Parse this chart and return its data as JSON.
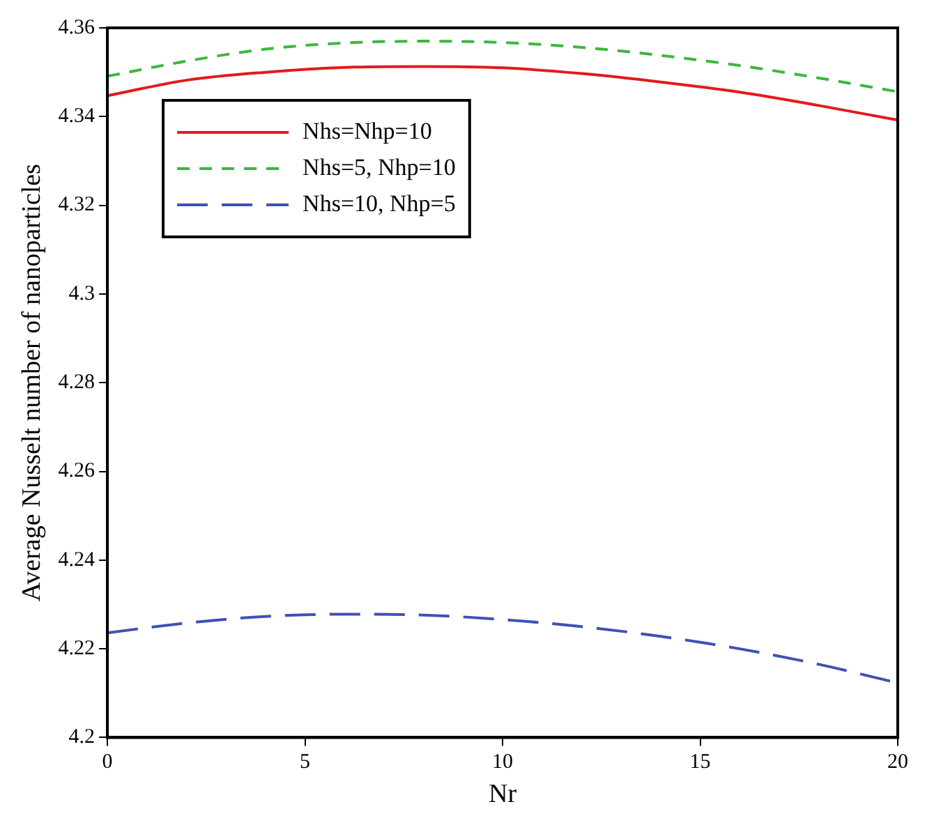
{
  "chart_data": {
    "type": "line",
    "xlabel": "Nr",
    "ylabel": "Average Nusselt number of nanoparticles",
    "xlim": [
      0,
      20
    ],
    "xticks": [
      0,
      5,
      10,
      15,
      20
    ],
    "ylim": [
      4.2,
      4.36
    ],
    "yticks": [
      4.2,
      4.22,
      4.24,
      4.26,
      4.28,
      4.3,
      4.32,
      4.34,
      4.36
    ],
    "grid": false,
    "legend": "top left",
    "marker": "none",
    "x": [
      0,
      2,
      4,
      6,
      8,
      10,
      12,
      14,
      16,
      18,
      20
    ],
    "series": [
      {
        "name": "Nhs=Nhp=10",
        "color": "#e31a1c",
        "line_style": "solid",
        "values": [
          4.3447,
          4.3482,
          4.35,
          4.3511,
          4.3513,
          4.351,
          4.3497,
          4.3478,
          4.3455,
          4.3425,
          4.3392
        ]
      },
      {
        "name": "Nhs=5, Nhp=10",
        "color": "#3cb83c",
        "line_style": "dashed",
        "values": [
          4.3491,
          4.3525,
          4.3552,
          4.3566,
          4.357,
          4.3567,
          4.3556,
          4.3538,
          4.3515,
          4.3487,
          4.3456
        ]
      },
      {
        "name": "Nhs=10, Nhp=5",
        "color": "#3f51b5",
        "line_style": "longdash",
        "values": [
          4.2236,
          4.2258,
          4.2273,
          4.2278,
          4.2276,
          4.2266,
          4.225,
          4.2228,
          4.22,
          4.2165,
          4.2123
        ]
      }
    ]
  }
}
